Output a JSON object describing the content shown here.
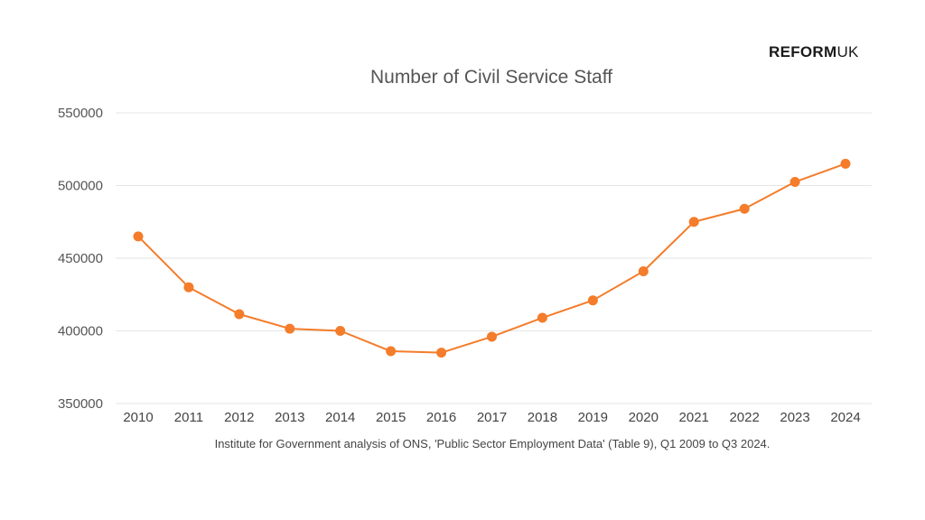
{
  "branding": {
    "logo_bold": "REFORM",
    "logo_light": "UK"
  },
  "chart_data": {
    "type": "line",
    "title": "Number of Civil Service Staff",
    "xlabel": "",
    "ylabel": "",
    "categories": [
      "2010",
      "2011",
      "2012",
      "2013",
      "2014",
      "2015",
      "2016",
      "2017",
      "2018",
      "2019",
      "2020",
      "2021",
      "2022",
      "2023",
      "2024"
    ],
    "series": [
      {
        "name": "Civil Service Staff",
        "color": "#f47c2a",
        "values": [
          465000,
          430000,
          411500,
          401500,
          400000,
          386000,
          385000,
          396000,
          409000,
          421000,
          441000,
          475000,
          484000,
          502500,
          515000
        ]
      }
    ],
    "ylim": [
      350000,
      550000
    ],
    "yticks": [
      "550000",
      "500000",
      "450000",
      "400000",
      "350000"
    ],
    "ytick_values": [
      550000,
      500000,
      450000,
      400000,
      350000
    ],
    "grid": true,
    "legend": "none",
    "source_note": "Institute for Government analysis of ONS, 'Public Sector Employment Data' (Table 9), Q1 2009 to Q3 2024."
  }
}
